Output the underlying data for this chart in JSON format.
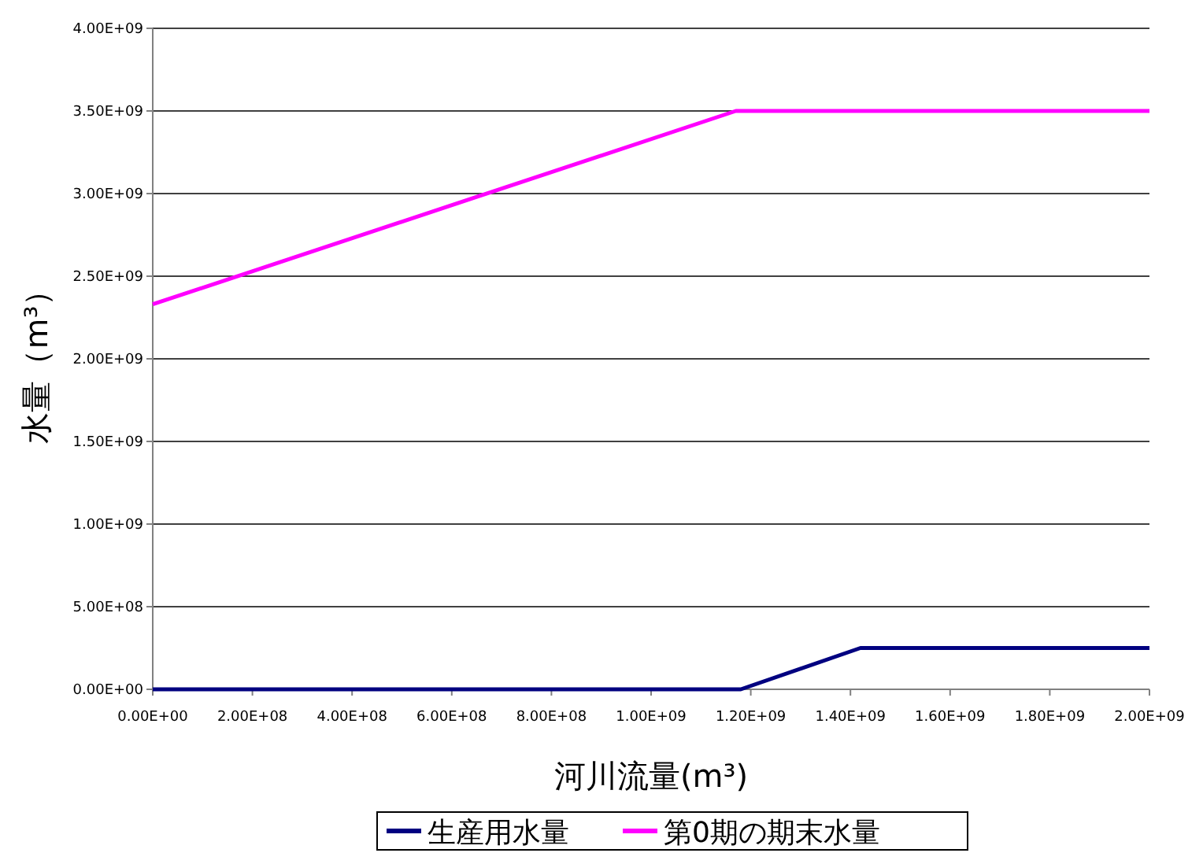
{
  "chart_data": {
    "type": "line",
    "xlabel": "河川流量(m³)",
    "ylabel": "水量（m³）",
    "series": [
      {
        "name": "生産用水量",
        "color": "#000080",
        "x": [
          0,
          1180000000.0,
          1420000000.0,
          2000000000.0
        ],
        "values": [
          0,
          0,
          250000000.0,
          250000000.0
        ]
      },
      {
        "name": "第0期の期末水量",
        "color": "#ff00ff",
        "x": [
          0,
          1170000000.0,
          2000000000.0
        ],
        "values": [
          2330000000.0,
          3500000000.0,
          3500000000.0
        ]
      }
    ],
    "xlim": [
      0,
      2000000000.0
    ],
    "ylim": [
      0,
      4000000000.0
    ],
    "xticks": [
      {
        "value": 0,
        "label": "0.00E+00"
      },
      {
        "value": 200000000.0,
        "label": "2.00E+08"
      },
      {
        "value": 400000000.0,
        "label": "4.00E+08"
      },
      {
        "value": 600000000.0,
        "label": "6.00E+08"
      },
      {
        "value": 800000000.0,
        "label": "8.00E+08"
      },
      {
        "value": 1000000000.0,
        "label": "1.00E+09"
      },
      {
        "value": 1200000000.0,
        "label": "1.20E+09"
      },
      {
        "value": 1400000000.0,
        "label": "1.40E+09"
      },
      {
        "value": 1600000000.0,
        "label": "1.60E+09"
      },
      {
        "value": 1800000000.0,
        "label": "1.80E+09"
      },
      {
        "value": 2000000000.0,
        "label": "2.00E+09"
      }
    ],
    "yticks": [
      {
        "value": 0,
        "label": "0.00E+00"
      },
      {
        "value": 500000000.0,
        "label": "5.00E+08"
      },
      {
        "value": 1000000000.0,
        "label": "1.00E+09"
      },
      {
        "value": 1500000000.0,
        "label": "1.50E+09"
      },
      {
        "value": 2000000000.0,
        "label": "2.00E+09"
      },
      {
        "value": 2500000000.0,
        "label": "2.50E+09"
      },
      {
        "value": 3000000000.0,
        "label": "3.00E+09"
      },
      {
        "value": 3500000000.0,
        "label": "3.50E+09"
      },
      {
        "value": 4000000000.0,
        "label": "4.00E+09"
      }
    ],
    "grid": "y",
    "legend": "bottom",
    "marker": "none",
    "line_style": "solid"
  }
}
